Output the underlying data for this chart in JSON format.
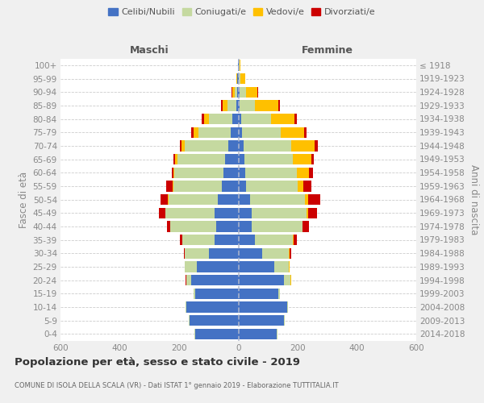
{
  "age_groups": [
    "0-4",
    "5-9",
    "10-14",
    "15-19",
    "20-24",
    "25-29",
    "30-34",
    "35-39",
    "40-44",
    "45-49",
    "50-54",
    "55-59",
    "60-64",
    "65-69",
    "70-74",
    "75-79",
    "80-84",
    "85-89",
    "90-94",
    "95-99",
    "100+"
  ],
  "birth_years": [
    "2014-2018",
    "2009-2013",
    "2004-2008",
    "1999-2003",
    "1994-1998",
    "1989-1993",
    "1984-1988",
    "1979-1983",
    "1974-1978",
    "1969-1973",
    "1964-1968",
    "1959-1963",
    "1954-1958",
    "1949-1953",
    "1944-1948",
    "1939-1943",
    "1934-1938",
    "1929-1933",
    "1924-1928",
    "1919-1923",
    "≤ 1918"
  ],
  "males": {
    "celibi": [
      145,
      165,
      175,
      145,
      160,
      140,
      100,
      80,
      75,
      80,
      70,
      55,
      50,
      45,
      35,
      25,
      20,
      8,
      5,
      3,
      2
    ],
    "coniugati": [
      2,
      2,
      2,
      5,
      15,
      40,
      80,
      110,
      155,
      165,
      165,
      165,
      165,
      160,
      145,
      110,
      80,
      30,
      8,
      2,
      0
    ],
    "vedovi": [
      0,
      0,
      0,
      0,
      0,
      0,
      0,
      0,
      0,
      2,
      2,
      3,
      5,
      8,
      12,
      15,
      15,
      15,
      8,
      2,
      0
    ],
    "divorziati": [
      0,
      0,
      0,
      0,
      2,
      2,
      5,
      8,
      12,
      20,
      25,
      20,
      5,
      5,
      5,
      8,
      8,
      5,
      2,
      0,
      0
    ]
  },
  "females": {
    "celibi": [
      130,
      155,
      165,
      135,
      155,
      120,
      80,
      55,
      45,
      45,
      40,
      25,
      22,
      20,
      18,
      12,
      10,
      5,
      5,
      2,
      2
    ],
    "coniugati": [
      2,
      2,
      2,
      5,
      20,
      50,
      90,
      130,
      170,
      185,
      185,
      175,
      175,
      165,
      160,
      130,
      100,
      50,
      20,
      5,
      2
    ],
    "vedovi": [
      0,
      0,
      0,
      0,
      2,
      2,
      2,
      2,
      2,
      5,
      10,
      20,
      40,
      60,
      80,
      80,
      80,
      80,
      40,
      15,
      2
    ],
    "divorziati": [
      0,
      0,
      0,
      0,
      2,
      2,
      5,
      10,
      20,
      30,
      40,
      25,
      15,
      10,
      10,
      8,
      8,
      5,
      2,
      0,
      0
    ]
  },
  "colors": {
    "celibi": "#4472c4",
    "coniugati": "#c5d9a0",
    "vedovi": "#ffc000",
    "divorziati": "#cc0000"
  },
  "xlim": 600,
  "title": "Popolazione per età, sesso e stato civile - 2019",
  "subtitle": "COMUNE DI ISOLA DELLA SCALA (VR) - Dati ISTAT 1° gennaio 2019 - Elaborazione TUTTITALIA.IT",
  "ylabel_left": "Fasce di età",
  "ylabel_right": "Anni di nascita",
  "legend_labels": [
    "Celibi/Nubili",
    "Coniugati/e",
    "Vedovi/e",
    "Divorziati/e"
  ],
  "background_color": "#f0f0f0",
  "plot_bg_color": "#ffffff",
  "maschi_label": "Maschi",
  "femmine_label": "Femmine"
}
